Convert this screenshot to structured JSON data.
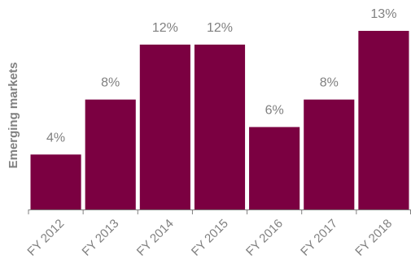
{
  "chart_data": {
    "type": "bar",
    "categories": [
      "FY 2012",
      "FY 2013",
      "FY 2014",
      "FY 2015",
      "FY 2016",
      "FY 2017",
      "FY 2018"
    ],
    "values": [
      4,
      8,
      12,
      12,
      6,
      8,
      13
    ],
    "value_labels": [
      "4%",
      "8%",
      "12%",
      "12%",
      "6%",
      "8%",
      "13%"
    ],
    "ylabel": "Emerging markets",
    "ylim": [
      0,
      13
    ],
    "bar_color": "#7b0041",
    "axis_color": "#808080",
    "label_color": "#808080",
    "grid": false,
    "legend": "none"
  }
}
